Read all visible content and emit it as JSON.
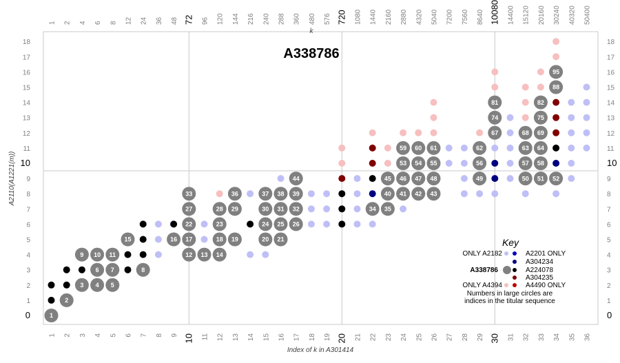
{
  "chart_data": {
    "type": "scatter",
    "title": "A338786",
    "xlabel": "Index of k in A301414",
    "ylabel": "A2110(A1221(m))",
    "top_axis_label": "k",
    "x_range": [
      1,
      36
    ],
    "y_range": [
      0,
      18
    ],
    "x_ticks_bottom": [
      "1",
      "2",
      "3",
      "4",
      "5",
      "6",
      "7",
      "8",
      "9",
      "10",
      "11",
      "12",
      "13",
      "14",
      "15",
      "16",
      "17",
      "18",
      "19",
      "20",
      "21",
      "22",
      "23",
      "24",
      "25",
      "26",
      "27",
      "28",
      "29",
      "30",
      "31",
      "32",
      "33",
      "34",
      "35",
      "36"
    ],
    "x_ticks_top": [
      "1",
      "2",
      "4",
      "6",
      "8",
      "12",
      "24",
      "36",
      "48",
      "72",
      "96",
      "120",
      "144",
      "216",
      "240",
      "288",
      "360",
      "480",
      "576",
      "720",
      "1080",
      "1440",
      "2160",
      "2880",
      "4320",
      "5040",
      "7200",
      "7560",
      "8640",
      "10080",
      "14400",
      "15120",
      "20160",
      "30240",
      "40320",
      "50400"
    ],
    "major_x": [
      10,
      20,
      30
    ],
    "major_y": [
      10
    ],
    "y_ticks": [
      "0",
      "1",
      "2",
      "3",
      "4",
      "5",
      "6",
      "7",
      "8",
      "9",
      "10",
      "11",
      "12",
      "13",
      "14",
      "15",
      "16",
      "17",
      "18"
    ],
    "grid": "lines at 10, 20, 30 (x) and 9.5 (y)",
    "legend_position": "bottom-right",
    "categories": {
      "a338786": "#808080",
      "only_a2182": "#bfbff7",
      "a2201_only": "#0000bf",
      "a304234": "#000080",
      "a224078": "#000000",
      "a304235": "#800000",
      "only_a4394": "#f7bfbf",
      "a4490_only": "#bf0000"
    },
    "series": [
      {
        "category": "a338786",
        "points": [
          [
            1,
            0,
            1
          ],
          [
            2,
            1,
            2
          ],
          [
            3,
            2,
            3
          ],
          [
            4,
            2,
            4
          ],
          [
            5,
            2,
            5
          ],
          [
            4,
            3,
            6
          ],
          [
            5,
            3,
            7
          ],
          [
            7,
            3,
            8
          ],
          [
            3,
            4,
            9
          ],
          [
            4,
            4,
            10
          ],
          [
            5,
            4,
            11
          ],
          [
            10,
            4,
            12
          ],
          [
            11,
            4,
            13
          ],
          [
            12,
            4,
            14
          ],
          [
            6,
            5,
            15
          ],
          [
            9,
            5,
            16
          ],
          [
            10,
            5,
            17
          ],
          [
            12,
            5,
            18
          ],
          [
            13,
            5,
            19
          ],
          [
            15,
            5,
            20
          ],
          [
            16,
            5,
            21
          ],
          [
            10,
            6,
            22
          ],
          [
            12,
            6,
            23
          ],
          [
            15,
            6,
            24
          ],
          [
            16,
            6,
            25
          ],
          [
            17,
            6,
            26
          ],
          [
            10,
            7,
            27
          ],
          [
            12,
            7,
            28
          ],
          [
            13,
            7,
            29
          ],
          [
            15,
            7,
            30
          ],
          [
            16,
            7,
            31
          ],
          [
            17,
            7,
            32
          ],
          [
            10,
            8,
            33
          ],
          [
            22,
            7,
            34
          ],
          [
            23,
            7,
            35
          ],
          [
            13,
            8,
            36
          ],
          [
            15,
            8,
            37
          ],
          [
            16,
            8,
            38
          ],
          [
            17,
            8,
            39
          ],
          [
            23,
            8,
            40
          ],
          [
            24,
            8,
            41
          ],
          [
            25,
            8,
            42
          ],
          [
            26,
            8,
            43
          ],
          [
            17,
            9,
            44
          ],
          [
            23,
            9,
            45
          ],
          [
            24,
            9,
            46
          ],
          [
            25,
            9,
            47
          ],
          [
            26,
            9,
            48
          ],
          [
            29,
            9,
            49
          ],
          [
            32,
            9,
            50
          ],
          [
            33,
            9,
            51
          ],
          [
            34,
            9,
            52
          ],
          [
            24,
            10,
            53
          ],
          [
            25,
            10,
            54
          ],
          [
            26,
            10,
            55
          ],
          [
            29,
            10,
            56
          ],
          [
            32,
            10,
            57
          ],
          [
            33,
            10,
            58
          ],
          [
            24,
            11,
            59
          ],
          [
            25,
            11,
            60
          ],
          [
            26,
            11,
            61
          ],
          [
            29,
            11,
            62
          ],
          [
            32,
            11,
            63
          ],
          [
            33,
            11,
            64
          ],
          [
            30,
            12,
            67
          ],
          [
            32,
            12,
            68
          ],
          [
            33,
            12,
            69
          ],
          [
            30,
            13,
            74
          ],
          [
            33,
            13,
            75
          ],
          [
            30,
            14,
            81
          ],
          [
            33,
            14,
            82
          ],
          [
            34,
            15,
            88
          ],
          [
            34,
            16,
            95
          ]
        ]
      },
      {
        "category": "a224078",
        "points": [
          [
            1,
            1
          ],
          [
            1,
            2
          ],
          [
            2,
            2
          ],
          [
            2,
            3
          ],
          [
            3,
            3
          ],
          [
            6,
            3
          ],
          [
            6,
            4
          ],
          [
            7,
            4
          ],
          [
            7,
            5
          ],
          [
            7,
            6
          ],
          [
            9,
            6
          ],
          [
            14,
            6
          ],
          [
            20,
            6
          ],
          [
            20,
            7
          ],
          [
            20,
            8
          ],
          [
            22,
            9
          ],
          [
            34,
            11
          ]
        ]
      },
      {
        "category": "only_a2182",
        "points": [
          [
            8,
            4
          ],
          [
            8,
            5
          ],
          [
            8,
            6
          ],
          [
            11,
            5
          ],
          [
            11,
            6
          ],
          [
            14,
            4
          ],
          [
            14,
            8
          ],
          [
            15,
            4
          ],
          [
            16,
            9
          ],
          [
            18,
            6
          ],
          [
            18,
            7
          ],
          [
            18,
            8
          ],
          [
            19,
            6
          ],
          [
            19,
            7
          ],
          [
            19,
            8
          ],
          [
            21,
            6
          ],
          [
            21,
            7
          ],
          [
            21,
            8
          ],
          [
            21,
            9
          ],
          [
            22,
            6
          ],
          [
            24,
            7
          ],
          [
            27,
            10
          ],
          [
            27,
            11
          ],
          [
            28,
            8
          ],
          [
            28,
            9
          ],
          [
            28,
            10
          ],
          [
            28,
            11
          ],
          [
            29,
            8
          ],
          [
            30,
            8
          ],
          [
            30,
            11
          ],
          [
            31,
            9
          ],
          [
            31,
            10
          ],
          [
            31,
            11
          ],
          [
            31,
            12
          ],
          [
            31,
            13
          ],
          [
            32,
            8
          ],
          [
            34,
            8
          ],
          [
            35,
            9
          ],
          [
            35,
            10
          ],
          [
            35,
            11
          ],
          [
            35,
            12
          ],
          [
            35,
            13
          ],
          [
            35,
            14
          ],
          [
            36,
            11
          ],
          [
            36,
            12
          ],
          [
            36,
            13
          ],
          [
            36,
            14
          ],
          [
            36,
            15
          ]
        ]
      },
      {
        "category": "a304234",
        "points": [
          [
            22,
            8
          ],
          [
            30,
            9
          ],
          [
            30,
            10
          ],
          [
            34,
            10
          ]
        ]
      },
      {
        "category": "a304235",
        "points": [
          [
            20,
            9
          ],
          [
            22,
            10
          ],
          [
            22,
            11
          ],
          [
            34,
            12
          ],
          [
            34,
            13
          ],
          [
            34,
            14
          ]
        ]
      },
      {
        "category": "only_a4394",
        "points": [
          [
            12,
            8
          ],
          [
            20,
            10
          ],
          [
            20,
            11
          ],
          [
            22,
            12
          ],
          [
            23,
            10
          ],
          [
            23,
            11
          ],
          [
            24,
            12
          ],
          [
            25,
            12
          ],
          [
            26,
            12
          ],
          [
            26,
            13
          ],
          [
            26,
            14
          ],
          [
            29,
            12
          ],
          [
            30,
            15
          ],
          [
            30,
            16
          ],
          [
            32,
            13
          ],
          [
            32,
            14
          ],
          [
            32,
            15
          ],
          [
            33,
            15
          ],
          [
            33,
            16
          ],
          [
            34,
            17
          ],
          [
            34,
            18
          ]
        ]
      }
    ]
  },
  "key": {
    "title": "Key",
    "only_a2182": "ONLY A2182",
    "a2201_only": "A2201 ONLY",
    "a304234": "A304234",
    "a338786": "A338786",
    "a224078": "A224078",
    "a304235": "A304235",
    "only_a4394": "ONLY A4394",
    "a4490_only": "A4490 ONLY",
    "note_line1": "Numbers in large circles are",
    "note_line2": "indices in the titular sequence"
  }
}
